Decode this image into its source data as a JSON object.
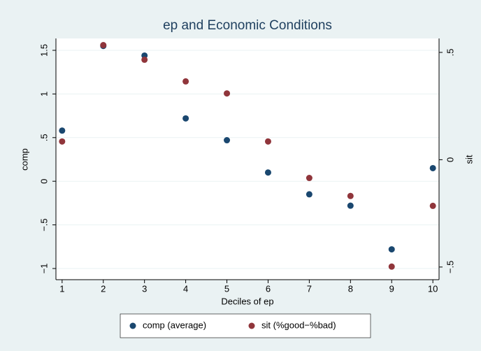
{
  "chart_data": {
    "type": "scatter",
    "title": "ep and Economic Conditions",
    "x_label": "Deciles of ep",
    "y_label": "comp",
    "y2_label": "sit",
    "x": [
      1,
      2,
      3,
      4,
      5,
      6,
      7,
      8,
      9,
      10
    ],
    "xlim": [
      0.85,
      10.15
    ],
    "xticks": [
      1,
      2,
      3,
      4,
      5,
      6,
      7,
      8,
      9,
      10
    ],
    "ylim": [
      -1.128,
      1.636
    ],
    "yticks": [
      {
        "value": -1,
        "label": "−1"
      },
      {
        "value": -0.5,
        "label": "−.5"
      },
      0,
      {
        "value": 0.5,
        "label": ".5"
      },
      1,
      1.5
    ],
    "y2lim": [
      -0.559,
      0.565
    ],
    "y2ticks": [
      {
        "value": -0.5,
        "label": "−.5"
      },
      0,
      {
        "value": 0.5,
        "label": ".5"
      }
    ],
    "grid": true,
    "series": [
      {
        "name": "comp (average)",
        "color": "#1a476f",
        "values": [
          0.58,
          1.55,
          1.44,
          0.72,
          0.47,
          0.1,
          -0.15,
          -0.28,
          -0.78,
          0.15
        ]
      },
      {
        "name": "sit (%good−%bad)",
        "color": "#90353b",
        "axis": "y2",
        "values": [
          0.085,
          0.534,
          0.466,
          0.365,
          0.309,
          0.085,
          -0.085,
          -0.169,
          -0.498,
          -0.215
        ]
      }
    ]
  }
}
